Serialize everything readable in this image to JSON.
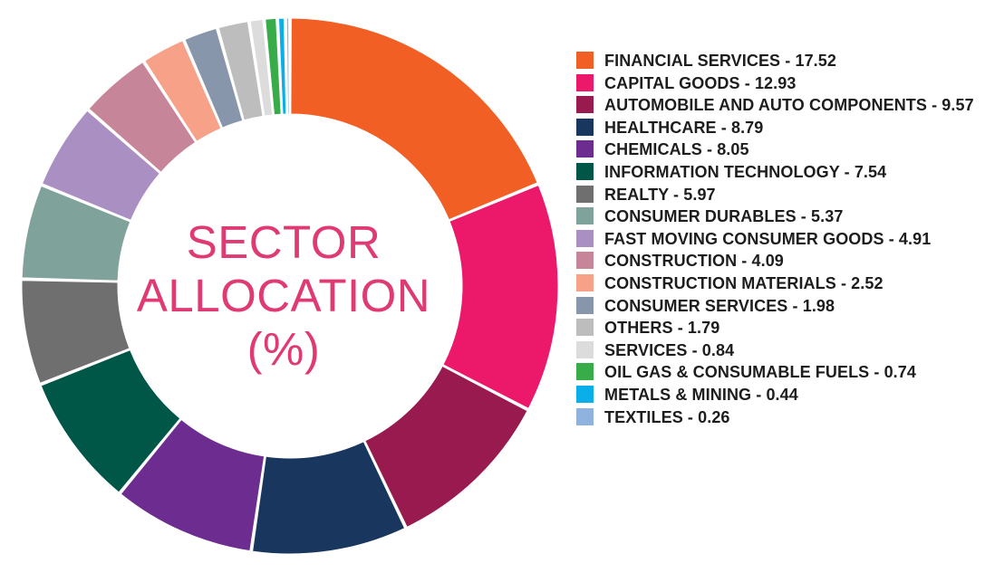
{
  "chart_data": {
    "type": "pie",
    "title_lines": [
      "SECTOR",
      "ALLOCATION",
      "(%)"
    ],
    "series": [
      {
        "name": "FINANCIAL SERVICES",
        "value": 17.52,
        "color": "#f25f25"
      },
      {
        "name": "CAPITAL GOODS",
        "value": 12.93,
        "color": "#ec186a"
      },
      {
        "name": "AUTOMOBILE AND AUTO COMPONENTS",
        "value": 9.57,
        "color": "#991a4e"
      },
      {
        "name": "HEALTHCARE",
        "value": 8.79,
        "color": "#19365e"
      },
      {
        "name": "CHEMICALS",
        "value": 8.05,
        "color": "#6d2c8f"
      },
      {
        "name": "INFORMATION TECHNOLOGY",
        "value": 7.54,
        "color": "#005747"
      },
      {
        "name": "REALTY",
        "value": 5.97,
        "color": "#6f6f6f"
      },
      {
        "name": "CONSUMER DURABLES",
        "value": 5.37,
        "color": "#7fa39a"
      },
      {
        "name": "FAST MOVING CONSUMER GOODS",
        "value": 4.91,
        "color": "#aa90c2"
      },
      {
        "name": "CONSTRUCTION",
        "value": 4.09,
        "color": "#c68598"
      },
      {
        "name": "CONSTRUCTION MATERIALS",
        "value": 2.52,
        "color": "#f6a188"
      },
      {
        "name": "CONSUMER SERVICES",
        "value": 1.98,
        "color": "#8896ab"
      },
      {
        "name": "OTHERS",
        "value": 1.79,
        "color": "#bdbdbd"
      },
      {
        "name": "SERVICES",
        "value": 0.84,
        "color": "#dcdcdc"
      },
      {
        "name": "OIL GAS & CONSUMABLE FUELS",
        "value": 0.74,
        "color": "#39ac4a"
      },
      {
        "name": "METALS & MINING",
        "value": 0.44,
        "color": "#0aaee8"
      },
      {
        "name": "TEXTILES",
        "value": 0.26,
        "color": "#8fb2df"
      }
    ],
    "legend_labels": [
      "FINANCIAL SERVICES - 17.52",
      "CAPITAL GOODS - 12.93",
      "AUTOMOBILE AND AUTO COMPONENTS - 9.57",
      "HEALTHCARE - 8.79",
      "CHEMICALS - 8.05",
      "INFORMATION TECHNOLOGY - 7.54",
      "REALTY - 5.97",
      "CONSUMER DURABLES - 5.37",
      "FAST MOVING CONSUMER GOODS - 4.91",
      "CONSTRUCTION - 4.09",
      "CONSTRUCTION MATERIALS - 2.52",
      "CONSUMER SERVICES - 1.98",
      "OTHERS - 1.79",
      "SERVICES - 0.84",
      "OIL GAS & CONSUMABLE FUELS - 0.74",
      "METALS & MINING - 0.44",
      "TEXTILES - 0.26"
    ],
    "legend_placement": "right"
  }
}
